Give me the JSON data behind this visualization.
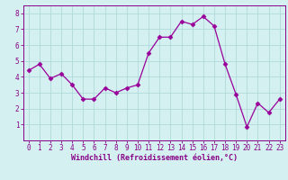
{
  "x": [
    0,
    1,
    2,
    3,
    4,
    5,
    6,
    7,
    8,
    9,
    10,
    11,
    12,
    13,
    14,
    15,
    16,
    17,
    18,
    19,
    20,
    21,
    22,
    23
  ],
  "y": [
    4.4,
    4.8,
    3.9,
    4.2,
    3.5,
    2.6,
    2.6,
    3.3,
    3.0,
    3.3,
    3.5,
    5.5,
    6.5,
    6.5,
    7.5,
    7.3,
    7.8,
    7.2,
    4.8,
    2.9,
    0.85,
    2.35,
    1.75,
    2.6
  ],
  "line_color": "#990099",
  "marker": "D",
  "marker_size": 2.5,
  "bg_color": "#d4f0f0",
  "grid_color": "#b0dada",
  "xlabel": "Windchill (Refroidissement éolien,°C)",
  "ylim": [
    0,
    8.5
  ],
  "xlim": [
    -0.5,
    23.5
  ],
  "yticks": [
    1,
    2,
    3,
    4,
    5,
    6,
    7,
    8
  ],
  "xticks": [
    0,
    1,
    2,
    3,
    4,
    5,
    6,
    7,
    8,
    9,
    10,
    11,
    12,
    13,
    14,
    15,
    16,
    17,
    18,
    19,
    20,
    21,
    22,
    23
  ],
  "font_color": "#880088",
  "tick_fontsize": 5.5,
  "xlabel_fontsize": 6.0
}
